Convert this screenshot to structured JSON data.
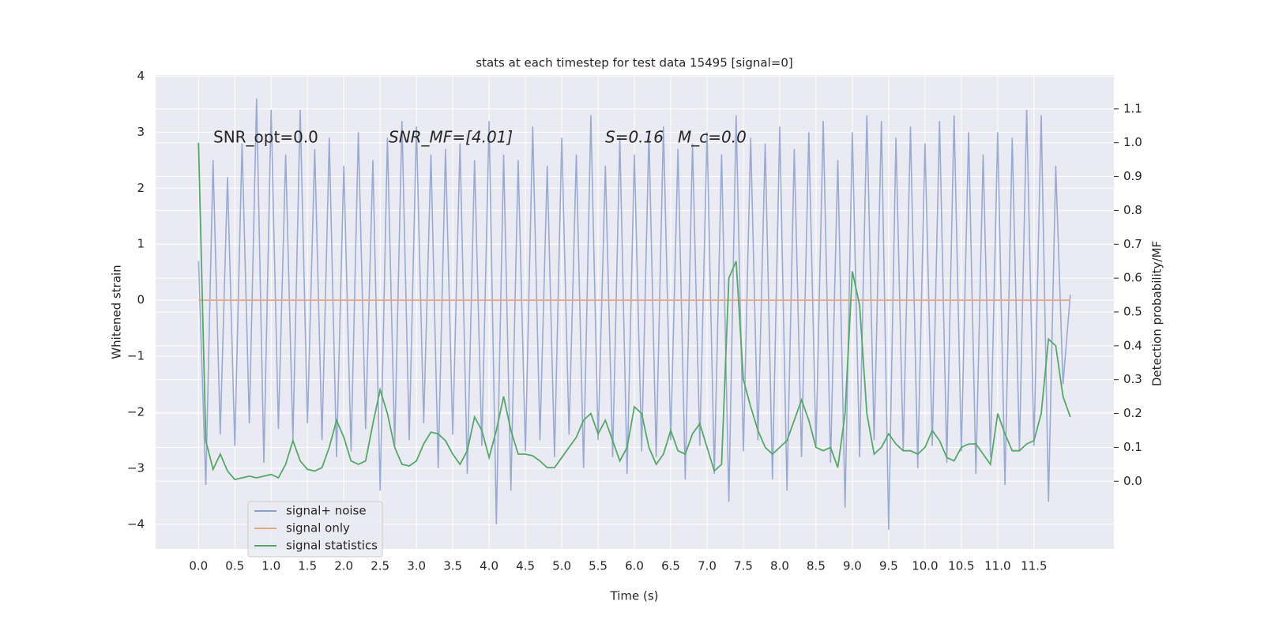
{
  "chart_data": {
    "type": "line",
    "title": "stats at each timestep for test data 15495 [signal=0]",
    "x_label": "Time (s)",
    "y_label": "Whitened strain",
    "y2_label": "Detection probability/MF",
    "annotations": [
      "SNR_opt=0.0",
      "SNR_MF=[4.01]",
      "S=0.16",
      "M_c=0.0"
    ],
    "xlim": [
      -0.59,
      12.6
    ],
    "ylim": [
      -4.44,
      4.02
    ],
    "y2lim": [
      -0.2,
      1.2
    ],
    "grid": true,
    "legend": "lower left",
    "xticks": [
      {
        "value": 0,
        "label": "0.0"
      },
      0.5,
      {
        "value": 1,
        "label": "1.0"
      },
      1.5,
      {
        "value": 2,
        "label": "2.0"
      },
      2.5,
      {
        "value": 3,
        "label": "3.0"
      },
      3.5,
      {
        "value": 4,
        "label": "4.0"
      },
      4.5,
      {
        "value": 5,
        "label": "5.0"
      },
      5.5,
      {
        "value": 6,
        "label": "6.0"
      },
      6.5,
      {
        "value": 7,
        "label": "7.0"
      },
      7.5,
      {
        "value": 8,
        "label": "8.0"
      },
      8.5,
      {
        "value": 9,
        "label": "9.0"
      },
      9.5,
      {
        "value": 10,
        "label": "10.0"
      },
      10.5,
      {
        "value": 11,
        "label": "11.0"
      },
      11.5
    ],
    "yticks": [
      {
        "value": -4,
        "label": "−4"
      },
      {
        "value": -3,
        "label": "−3"
      },
      {
        "value": -2,
        "label": "−2"
      },
      {
        "value": -1,
        "label": "−1"
      },
      0,
      1,
      2,
      3,
      4
    ],
    "y2ticks": [
      {
        "value": 0,
        "label": "0.0"
      },
      0.1,
      0.2,
      0.3,
      0.4,
      0.5,
      0.6,
      0.7,
      0.8,
      0.9,
      {
        "value": 1,
        "label": "1.0"
      },
      1.1
    ],
    "x": [
      0,
      0.1,
      0.2,
      0.3,
      0.4,
      0.5,
      0.6,
      0.7,
      0.8,
      0.9,
      1,
      1.1,
      1.2,
      1.3,
      1.4,
      1.5,
      1.6,
      1.7,
      1.8,
      1.9,
      2,
      2.1,
      2.2,
      2.3,
      2.4,
      2.5,
      2.6,
      2.7,
      2.8,
      2.9,
      3,
      3.1,
      3.2,
      3.3,
      3.4,
      3.5,
      3.6,
      3.7,
      3.8,
      3.9,
      4,
      4.1,
      4.2,
      4.3,
      4.4,
      4.5,
      4.6,
      4.7,
      4.8,
      4.9,
      5,
      5.1,
      5.2,
      5.3,
      5.4,
      5.5,
      5.6,
      5.7,
      5.8,
      5.9,
      6,
      6.1,
      6.2,
      6.3,
      6.4,
      6.5,
      6.6,
      6.7,
      6.8,
      6.9,
      7,
      7.1,
      7.2,
      7.3,
      7.4,
      7.5,
      7.6,
      7.7,
      7.8,
      7.9,
      8,
      8.1,
      8.2,
      8.3,
      8.4,
      8.5,
      8.6,
      8.7,
      8.8,
      8.9,
      9,
      9.1,
      9.2,
      9.3,
      9.4,
      9.5,
      9.6,
      9.7,
      9.8,
      9.9,
      10,
      10.1,
      10.2,
      10.3,
      10.4,
      10.5,
      10.6,
      10.7,
      10.8,
      10.9,
      11,
      11.1,
      11.2,
      11.3,
      11.4,
      11.5,
      11.6,
      11.7,
      11.8,
      11.9,
      12
    ],
    "series": [
      {
        "name": "signal+ noise",
        "color": "#8c9fcb",
        "values": [
          0.7,
          -3.3,
          2.5,
          -2.4,
          2.2,
          -2.6,
          2.8,
          -2.2,
          3.6,
          -2.9,
          3.4,
          -2.3,
          2.6,
          -2.5,
          3.4,
          -2.2,
          2.7,
          -2.5,
          2.9,
          -2.8,
          2.4,
          -2.7,
          3.0,
          -2.3,
          2.5,
          -3.4,
          2.9,
          -2.6,
          3.2,
          -2.5,
          3.1,
          -2.2,
          2.6,
          -3.0,
          2.7,
          -2.4,
          2.8,
          -3.1,
          2.5,
          -2.6,
          3.2,
          -4.0,
          2.6,
          -3.4,
          2.5,
          -2.7,
          3.1,
          -2.5,
          2.4,
          -2.8,
          2.9,
          -2.4,
          2.6,
          -3.0,
          3.3,
          -2.5,
          2.4,
          -2.8,
          2.9,
          -3.1,
          2.6,
          -2.7,
          3.0,
          -2.8,
          3.1,
          -2.5,
          2.7,
          -3.2,
          2.8,
          -2.6,
          3.0,
          -3.1,
          2.6,
          -3.6,
          3.3,
          -2.7,
          2.9,
          -2.5,
          2.8,
          -3.2,
          3.1,
          -3.4,
          2.7,
          -2.8,
          3.0,
          -2.6,
          3.2,
          -2.9,
          2.5,
          -3.7,
          3.0,
          -2.8,
          3.3,
          -2.5,
          3.2,
          -4.1,
          2.9,
          -2.7,
          3.1,
          -3.0,
          2.8,
          -2.6,
          3.2,
          -2.9,
          3.3,
          -2.7,
          3.0,
          -3.1,
          2.6,
          -2.8,
          3.0,
          -3.3,
          2.9,
          -2.7,
          3.4,
          -2.6,
          3.3,
          -3.6,
          2.4,
          -1.5,
          0.1
        ]
      },
      {
        "name": "signal only",
        "color": "#e6a583",
        "x": [
          0,
          12
        ],
        "values": [
          0,
          0
        ]
      },
      {
        "name": "signal statistics",
        "color": "#55a868",
        "axis": "y2",
        "values": [
          1.0,
          0.12,
          0.035,
          0.08,
          0.03,
          0.005,
          0.01,
          0.015,
          0.01,
          0.015,
          0.02,
          0.01,
          0.05,
          0.12,
          0.06,
          0.035,
          0.03,
          0.04,
          0.1,
          0.18,
          0.13,
          0.06,
          0.05,
          0.06,
          0.17,
          0.27,
          0.2,
          0.1,
          0.05,
          0.045,
          0.06,
          0.11,
          0.145,
          0.14,
          0.12,
          0.08,
          0.05,
          0.09,
          0.19,
          0.15,
          0.07,
          0.15,
          0.25,
          0.15,
          0.08,
          0.08,
          0.075,
          0.06,
          0.04,
          0.04,
          0.07,
          0.1,
          0.13,
          0.18,
          0.2,
          0.14,
          0.18,
          0.12,
          0.06,
          0.1,
          0.22,
          0.2,
          0.1,
          0.05,
          0.08,
          0.15,
          0.09,
          0.08,
          0.14,
          0.17,
          0.1,
          0.03,
          0.05,
          0.6,
          0.65,
          0.3,
          0.22,
          0.15,
          0.1,
          0.08,
          0.1,
          0.12,
          0.18,
          0.24,
          0.18,
          0.1,
          0.09,
          0.1,
          0.04,
          0.2,
          0.62,
          0.52,
          0.2,
          0.08,
          0.1,
          0.14,
          0.11,
          0.09,
          0.09,
          0.08,
          0.1,
          0.15,
          0.12,
          0.07,
          0.06,
          0.1,
          0.11,
          0.11,
          0.08,
          0.05,
          0.2,
          0.14,
          0.09,
          0.09,
          0.11,
          0.12,
          0.2,
          0.42,
          0.4,
          0.25,
          0.19
        ]
      }
    ]
  }
}
